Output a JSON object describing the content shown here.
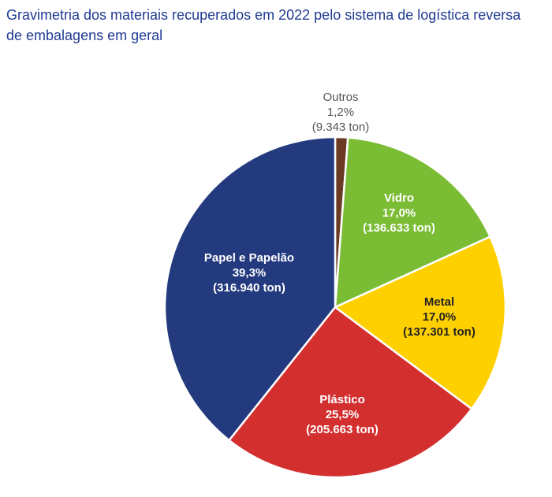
{
  "chart_data": {
    "type": "pie",
    "title": "Gravimetria dos materiais recuperados em 2022 pelo sistema de logística reversa de embalagens em geral",
    "slices": [
      {
        "label": "Outros",
        "percent_label": "1,2%",
        "tons_label": "(9.343 ton)",
        "value": 1.2,
        "color": "#6b3a22",
        "text_color": "#555555",
        "label_outside": true
      },
      {
        "label": "Vidro",
        "percent_label": "17,0%",
        "tons_label": "(136.633 ton)",
        "value": 17.0,
        "color": "#7bbc35",
        "text_color": "#ffffff",
        "label_outside": false
      },
      {
        "label": "Metal",
        "percent_label": "17,0%",
        "tons_label": "(137.301 ton)",
        "value": 17.0,
        "color": "#ffd000",
        "text_color": "#222222",
        "label_outside": false
      },
      {
        "label": "Plástico",
        "percent_label": "25,5%",
        "tons_label": "(205.663 ton)",
        "value": 25.5,
        "color": "#d42f2f",
        "text_color": "#ffffff",
        "label_outside": false
      },
      {
        "label": "Papel e Papelão",
        "percent_label": "39,3%",
        "tons_label": "(316.940 ton)",
        "value": 39.3,
        "color": "#233a7e",
        "text_color": "#ffffff",
        "label_outside": false
      }
    ]
  }
}
